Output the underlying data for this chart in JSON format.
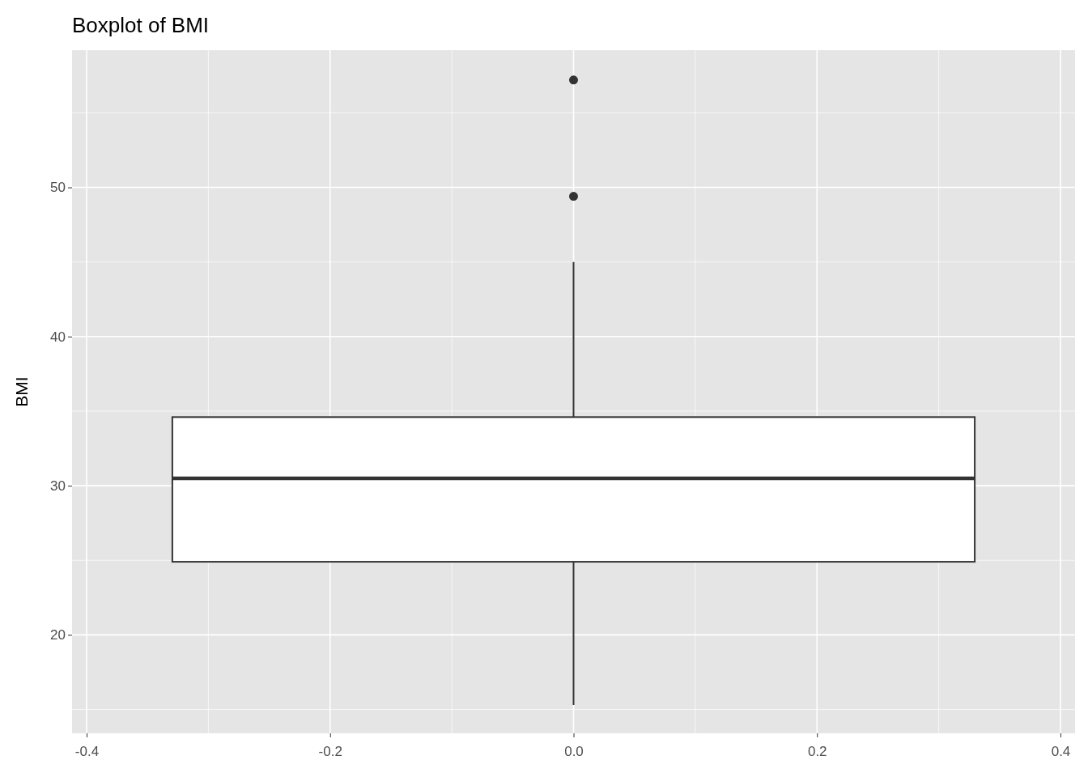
{
  "chart_data": {
    "type": "box",
    "title": "Boxplot of BMI",
    "ylabel": "BMI",
    "categories": [
      null
    ],
    "boxes": [
      {
        "low": 15.3,
        "q1": 24.9,
        "median": 30.5,
        "q3": 34.6,
        "high": 45.0,
        "outliers": [
          57.2,
          49.4
        ]
      }
    ],
    "annotations": [
      "-0.4",
      "-0.2",
      "0.0",
      "0.2",
      "0.4"
    ],
    "ylim": [
      13.4,
      59.2
    ],
    "yticks": [
      20,
      30,
      40,
      50
    ],
    "grid": true
  }
}
